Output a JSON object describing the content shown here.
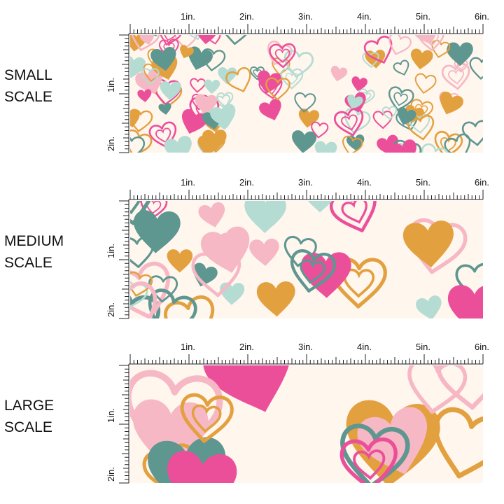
{
  "panels": [
    {
      "label": [
        "SMALL",
        "SCALE"
      ],
      "ruler_x": [
        "1in.",
        "2in.",
        "3in.",
        "4in.",
        "5in.",
        "6in."
      ],
      "ruler_y": [
        "1in.",
        "2in."
      ]
    },
    {
      "label": [
        "MEDIUM",
        "SCALE"
      ],
      "ruler_x": [
        "1in.",
        "2in.",
        "3in.",
        "4in.",
        "5in.",
        "6in."
      ],
      "ruler_y": [
        "1in.",
        "2in."
      ]
    },
    {
      "label": [
        "LARGE",
        "SCALE"
      ],
      "ruler_x": [
        "1in.",
        "2in.",
        "3in.",
        "4in.",
        "5in.",
        "6in."
      ],
      "ruler_y": [
        "1in.",
        "2in."
      ]
    }
  ]
}
